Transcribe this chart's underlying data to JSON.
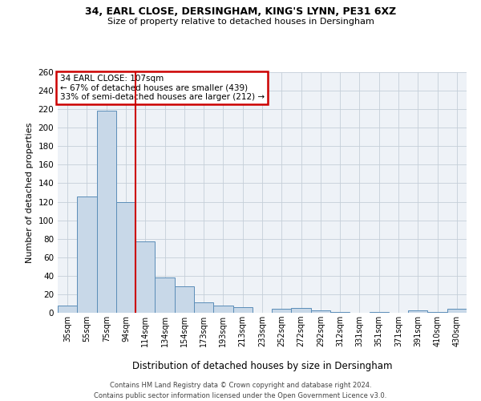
{
  "title1": "34, EARL CLOSE, DERSINGHAM, KING'S LYNN, PE31 6XZ",
  "title2": "Size of property relative to detached houses in Dersingham",
  "xlabel": "Distribution of detached houses by size in Dersingham",
  "ylabel": "Number of detached properties",
  "bar_color": "#c8d8e8",
  "bar_edge_color": "#5b8db8",
  "categories": [
    "35sqm",
    "55sqm",
    "75sqm",
    "94sqm",
    "114sqm",
    "134sqm",
    "154sqm",
    "173sqm",
    "193sqm",
    "213sqm",
    "233sqm",
    "252sqm",
    "272sqm",
    "292sqm",
    "312sqm",
    "331sqm",
    "351sqm",
    "371sqm",
    "391sqm",
    "410sqm",
    "430sqm"
  ],
  "values": [
    8,
    126,
    218,
    120,
    77,
    38,
    29,
    11,
    8,
    6,
    0,
    4,
    5,
    3,
    1,
    0,
    1,
    0,
    3,
    1,
    4
  ],
  "ylim": [
    0,
    260
  ],
  "yticks": [
    0,
    20,
    40,
    60,
    80,
    100,
    120,
    140,
    160,
    180,
    200,
    220,
    240,
    260
  ],
  "vline_x": 3.5,
  "vline_color": "#cc0000",
  "annotation_title": "34 EARL CLOSE: 107sqm",
  "annotation_line1": "← 67% of detached houses are smaller (439)",
  "annotation_line2": "33% of semi-detached houses are larger (212) →",
  "annotation_box_color": "#cc0000",
  "background_color": "#eef2f7",
  "grid_color": "#c5cfd8",
  "footer1": "Contains HM Land Registry data © Crown copyright and database right 2024.",
  "footer2": "Contains public sector information licensed under the Open Government Licence v3.0."
}
